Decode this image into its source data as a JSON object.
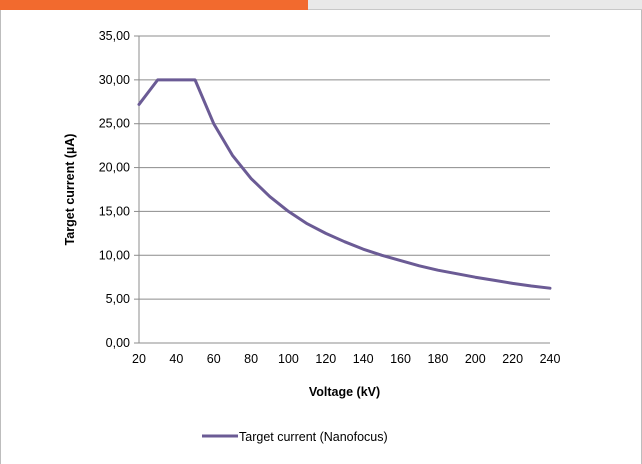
{
  "chart_data": {
    "type": "line",
    "title": "",
    "xlabel": "Voltage (kV)",
    "ylabel": "Target current (µA)",
    "xlim": [
      20,
      240
    ],
    "ylim": [
      0,
      35
    ],
    "x_ticks": [
      "20",
      "40",
      "60",
      "80",
      "100",
      "120",
      "140",
      "160",
      "180",
      "200",
      "220",
      "240"
    ],
    "y_ticks": [
      "0,00",
      "5,00",
      "10,00",
      "15,00",
      "20,00",
      "25,00",
      "30,00",
      "35,00"
    ],
    "grid": "horizontal",
    "legend_position": "bottom",
    "series": [
      {
        "name": "Target current (Nanofocus)",
        "color": "#6b5b95",
        "x": [
          20,
          30,
          40,
          50,
          60,
          70,
          80,
          90,
          100,
          110,
          120,
          130,
          140,
          150,
          160,
          170,
          180,
          190,
          200,
          210,
          220,
          230,
          240
        ],
        "y": [
          27.2,
          30.0,
          30.0,
          30.0,
          25.0,
          21.4,
          18.75,
          16.7,
          15.0,
          13.6,
          12.5,
          11.55,
          10.7,
          10.0,
          9.4,
          8.8,
          8.3,
          7.9,
          7.5,
          7.15,
          6.8,
          6.5,
          6.25
        ]
      }
    ]
  }
}
